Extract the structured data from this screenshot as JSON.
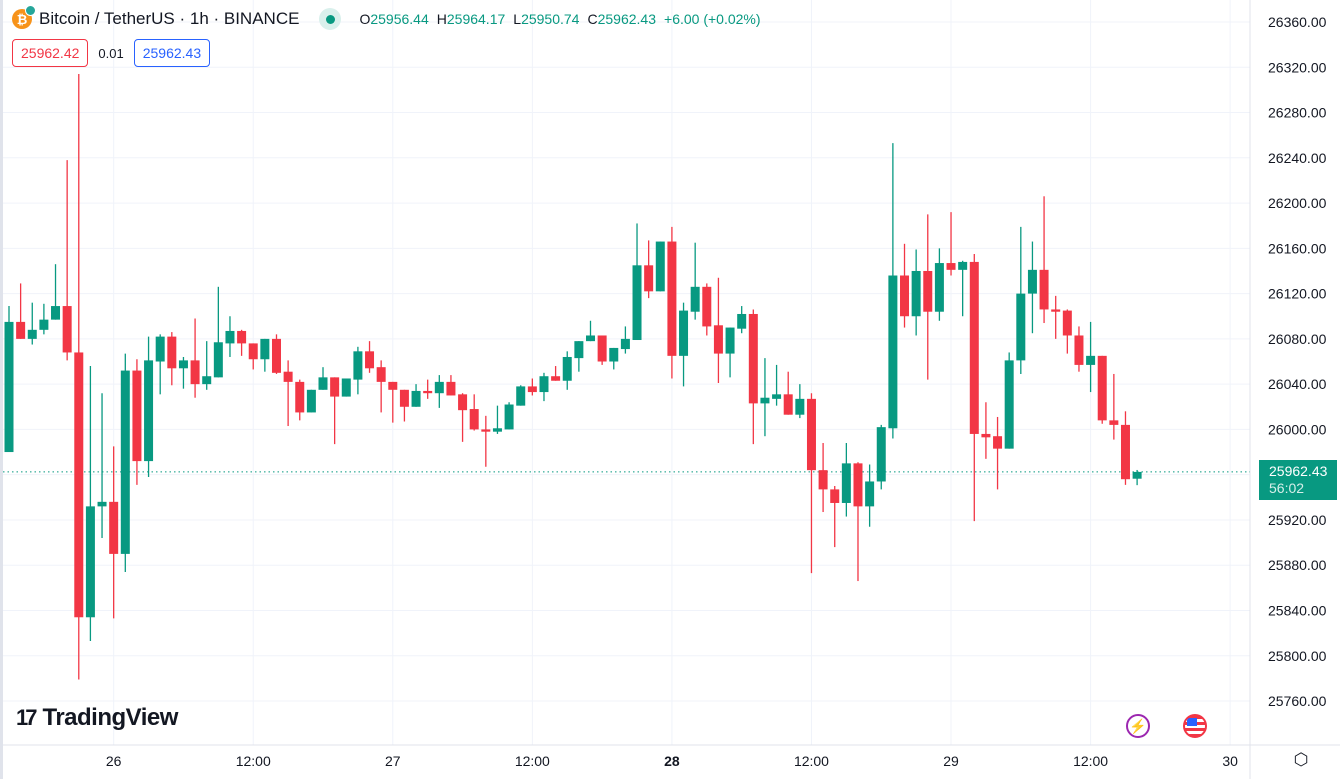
{
  "header": {
    "symbol": "Bitcoin / TetherUS · 1h · BINANCE",
    "o_label": "O",
    "o": "25956.44",
    "h_label": "H",
    "h": "25964.17",
    "l_label": "L",
    "l": "25950.74",
    "c_label": "C",
    "c": "25962.43",
    "change": "+6.00 (+0.02%)"
  },
  "quotes": {
    "bid": "25962.42",
    "spread": "0.01",
    "ask": "25962.43"
  },
  "last_price": {
    "price": "25962.43",
    "countdown": "56:02"
  },
  "logo": {
    "mark": "17",
    "text": "TradingView"
  },
  "icons": {
    "bolt": "lightning-icon",
    "flag": "us-flag-icon",
    "settings": "gear-icon"
  },
  "colors": {
    "up": "#089981",
    "down": "#f23645",
    "grid": "#f0f3fa",
    "text": "#131722"
  },
  "chart_data": {
    "type": "candlestick",
    "title": "Bitcoin / TetherUS · 1h · BINANCE",
    "ylim": [
      25740,
      26370
    ],
    "y_ticks": [
      "26360.00",
      "26320.00",
      "26280.00",
      "26240.00",
      "26200.00",
      "26160.00",
      "26120.00",
      "26080.00",
      "26040.00",
      "26000.00",
      "25960.00",
      "25920.00",
      "25880.00",
      "25840.00",
      "25800.00",
      "25760.00"
    ],
    "x_ticks": [
      {
        "label": "26",
        "index": 9,
        "bold": false
      },
      {
        "label": "12:00",
        "index": 21,
        "bold": false
      },
      {
        "label": "27",
        "index": 33,
        "bold": false
      },
      {
        "label": "12:00",
        "index": 45,
        "bold": false
      },
      {
        "label": "28",
        "index": 57,
        "bold": true
      },
      {
        "label": "12:00",
        "index": 69,
        "bold": false
      },
      {
        "label": "29",
        "index": 81,
        "bold": false
      },
      {
        "label": "12:00",
        "index": 93,
        "bold": false
      },
      {
        "label": "30",
        "index": 105,
        "bold": false
      }
    ],
    "ohlc_fields": [
      "open",
      "high",
      "low",
      "close"
    ],
    "ohlc": [
      [
        25980,
        26109,
        25980,
        26095
      ],
      [
        26095,
        26129,
        26080,
        26080
      ],
      [
        26080,
        26112,
        26075,
        26088
      ],
      [
        26088,
        26111,
        26084,
        26097
      ],
      [
        26097,
        26146,
        26097,
        26109
      ],
      [
        26109,
        26238,
        26061,
        26068
      ],
      [
        26068,
        26314,
        25779,
        25834
      ],
      [
        25834,
        26056,
        25813,
        25932
      ],
      [
        25932,
        26032,
        25904,
        25936
      ],
      [
        25936,
        25985,
        25833,
        25890
      ],
      [
        25890,
        26067,
        25874,
        26052
      ],
      [
        26052,
        26062,
        25951,
        25972
      ],
      [
        25972,
        26082,
        25958,
        26061
      ],
      [
        26060,
        26084,
        26031,
        26082
      ],
      [
        26082,
        26086,
        26039,
        26054
      ],
      [
        26054,
        26064,
        26036,
        26061
      ],
      [
        26061,
        26098,
        26028,
        26040
      ],
      [
        26040,
        26078,
        26035,
        26047
      ],
      [
        26046,
        26126,
        26046,
        26077
      ],
      [
        26076,
        26100,
        26064,
        26087
      ],
      [
        26087,
        26088,
        26065,
        26076
      ],
      [
        26076,
        26076,
        26053,
        26062
      ],
      [
        26062,
        26080,
        26051,
        26080
      ],
      [
        26080,
        26084,
        26049,
        26050
      ],
      [
        26051,
        26061,
        26003,
        26042
      ],
      [
        26042,
        26044,
        26008,
        26015
      ],
      [
        26015,
        26035,
        26015,
        26035
      ],
      [
        26035,
        26055,
        26035,
        26046
      ],
      [
        26046,
        26046,
        25987,
        26029
      ],
      [
        26029,
        26045,
        26029,
        26045
      ],
      [
        26044,
        26073,
        26031,
        26069
      ],
      [
        26069,
        26078,
        26050,
        26054
      ],
      [
        26055,
        26061,
        26015,
        26042
      ],
      [
        26042,
        26042,
        26006,
        26035
      ],
      [
        26035,
        26035,
        26007,
        26020
      ],
      [
        26020,
        26040,
        26020,
        26034
      ],
      [
        26034,
        26044,
        26027,
        26032
      ],
      [
        26032,
        26048,
        26019,
        26042
      ],
      [
        26042,
        26048,
        26030,
        26030
      ],
      [
        26031,
        26032,
        25989,
        26017
      ],
      [
        26018,
        26031,
        25999,
        26000
      ],
      [
        26000,
        26012,
        25967,
        25998
      ],
      [
        25998,
        26021,
        25996,
        26001
      ],
      [
        26000,
        26024,
        26000,
        26022
      ],
      [
        26021,
        26039,
        26021,
        26038
      ],
      [
        26038,
        26045,
        26030,
        26033
      ],
      [
        26033,
        26050,
        26025,
        26047
      ],
      [
        26047,
        26056,
        26043,
        26043
      ],
      [
        26043,
        26069,
        26035,
        26064
      ],
      [
        26063,
        26078,
        26051,
        26078
      ],
      [
        26078,
        26096,
        26078,
        26083
      ],
      [
        26083,
        26083,
        26057,
        26060
      ],
      [
        26060,
        26072,
        26053,
        26072
      ],
      [
        26071,
        26091,
        26067,
        26080
      ],
      [
        26079,
        26182,
        26079,
        26145
      ],
      [
        26145,
        26167,
        26116,
        26122
      ],
      [
        26122,
        26166,
        26122,
        26166
      ],
      [
        26166,
        26179,
        26045,
        26065
      ],
      [
        26065,
        26112,
        26038,
        26105
      ],
      [
        26104,
        26165,
        26097,
        26126
      ],
      [
        26126,
        26129,
        26083,
        26091
      ],
      [
        26092,
        26134,
        26041,
        26067
      ],
      [
        26067,
        26090,
        26046,
        26090
      ],
      [
        26089,
        26109,
        26085,
        26102
      ],
      [
        26102,
        26106,
        25987,
        26023
      ],
      [
        26023,
        26063,
        25994,
        26028
      ],
      [
        26027,
        26057,
        26021,
        26031
      ],
      [
        26031,
        26051,
        26013,
        26013
      ],
      [
        26013,
        26040,
        26010,
        26027
      ],
      [
        26027,
        26032,
        25873,
        25964
      ],
      [
        25964,
        25988,
        25927,
        25947
      ],
      [
        25947,
        25950,
        25896,
        25935
      ],
      [
        25935,
        25988,
        25923,
        25970
      ],
      [
        25970,
        25971,
        25866,
        25932
      ],
      [
        25932,
        25969,
        25914,
        25954
      ],
      [
        25954,
        26004,
        25947,
        26002
      ],
      [
        26001,
        26253,
        25992,
        26136
      ],
      [
        26136,
        26164,
        26090,
        26100
      ],
      [
        26100,
        26159,
        26083,
        26140
      ],
      [
        26140,
        26190,
        26044,
        26104
      ],
      [
        26104,
        26160,
        26096,
        26147
      ],
      [
        26147,
        26192,
        26136,
        26141
      ],
      [
        26141,
        26149,
        26100,
        26148
      ],
      [
        26148,
        26155,
        25919,
        25996
      ],
      [
        25996,
        26024,
        25974,
        25993
      ],
      [
        25994,
        26011,
        25947,
        25983
      ],
      [
        25983,
        26068,
        25983,
        26061
      ],
      [
        26061,
        26179,
        26049,
        26120
      ],
      [
        26120,
        26166,
        26085,
        26141
      ],
      [
        26141,
        26206,
        26094,
        26106
      ],
      [
        26106,
        26118,
        26080,
        26104
      ],
      [
        26105,
        26106,
        26067,
        26083
      ],
      [
        26083,
        26091,
        26051,
        26057
      ],
      [
        26057,
        26095,
        26033,
        26065
      ],
      [
        26065,
        26065,
        26005,
        26008
      ],
      [
        26008,
        26049,
        25991,
        26004
      ],
      [
        26004,
        26016,
        25951,
        25956
      ],
      [
        25956.44,
        25964.17,
        25950.74,
        25962.43
      ]
    ],
    "last_price": 25962.43
  }
}
